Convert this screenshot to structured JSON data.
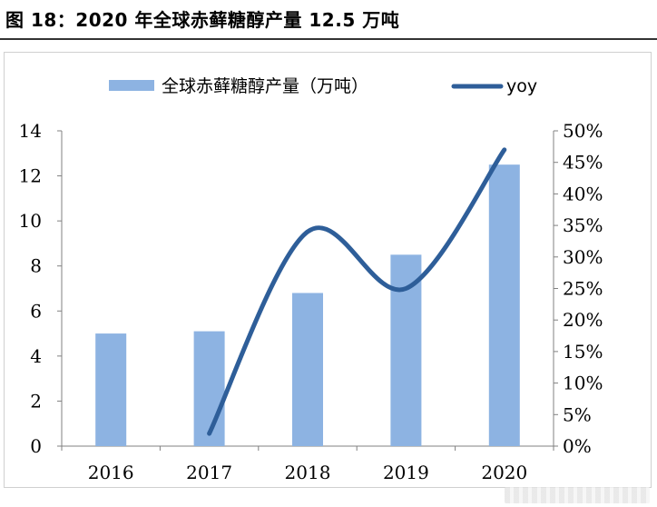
{
  "figure": {
    "title": "图 18：2020 年全球赤藓糖醇产量 12.5 万吨"
  },
  "chart_data": {
    "type": "bar+line",
    "categories": [
      "2016",
      "2017",
      "2018",
      "2019",
      "2020"
    ],
    "series": [
      {
        "name": "全球赤藓糖醇产量（万吨）",
        "type": "bar",
        "axis": "left",
        "color": "#8DB3E2",
        "values": [
          5.0,
          5.1,
          6.8,
          8.5,
          12.5
        ]
      },
      {
        "name": "yoy",
        "type": "line",
        "axis": "right",
        "color": "#2E5E99",
        "values": [
          null,
          2,
          34,
          25,
          47
        ]
      }
    ],
    "y_left": {
      "min": 0,
      "max": 14,
      "step": 2,
      "ticks": [
        "0",
        "2",
        "4",
        "6",
        "8",
        "10",
        "12",
        "14"
      ]
    },
    "y_right": {
      "min": 0,
      "max": 50,
      "step": 5,
      "ticks": [
        "0%",
        "5%",
        "10%",
        "15%",
        "20%",
        "25%",
        "30%",
        "35%",
        "40%",
        "45%",
        "50%"
      ]
    },
    "legend_position": "top",
    "grid": false
  }
}
